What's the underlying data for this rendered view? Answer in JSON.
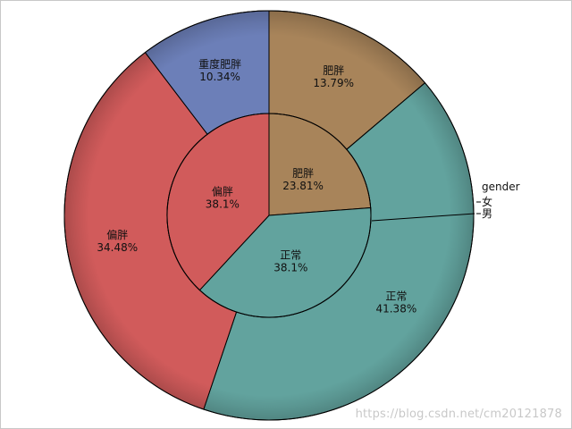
{
  "chart_data": {
    "type": "pie",
    "title": "",
    "legend": {
      "title": "gender",
      "entries": [
        "女",
        "男"
      ],
      "placement": "right"
    },
    "rings": [
      {
        "name": "",
        "ring": "inner",
        "slices": [
          {
            "label": "肥胖",
            "value": 23.81,
            "display": "23.81%",
            "color": "#a8845a"
          },
          {
            "label": "正常",
            "value": 38.1,
            "display": "38.1%",
            "color": "#62a39e"
          },
          {
            "label": "偏胖",
            "value": 38.1,
            "display": "38.1%",
            "color": "#d15b5b"
          }
        ]
      },
      {
        "name": "",
        "ring": "outer",
        "slices": [
          {
            "label": "肥胖",
            "value": 13.79,
            "display": "13.79%",
            "color": "#a8845a"
          },
          {
            "label": "",
            "value": 0.0,
            "display": "",
            "color": "#62a39e"
          },
          {
            "label": "正常",
            "value": 41.38,
            "display": "41.38%",
            "color": "#62a39e"
          },
          {
            "label": "偏胖",
            "value": 34.48,
            "display": "34.48%",
            "color": "#d15b5b"
          },
          {
            "label": "重度肥胖",
            "value": 10.34,
            "display": "10.34%",
            "color": "#6c7fb8"
          }
        ]
      }
    ]
  },
  "watermark": "https://blog.csdn.net/cm20121878"
}
